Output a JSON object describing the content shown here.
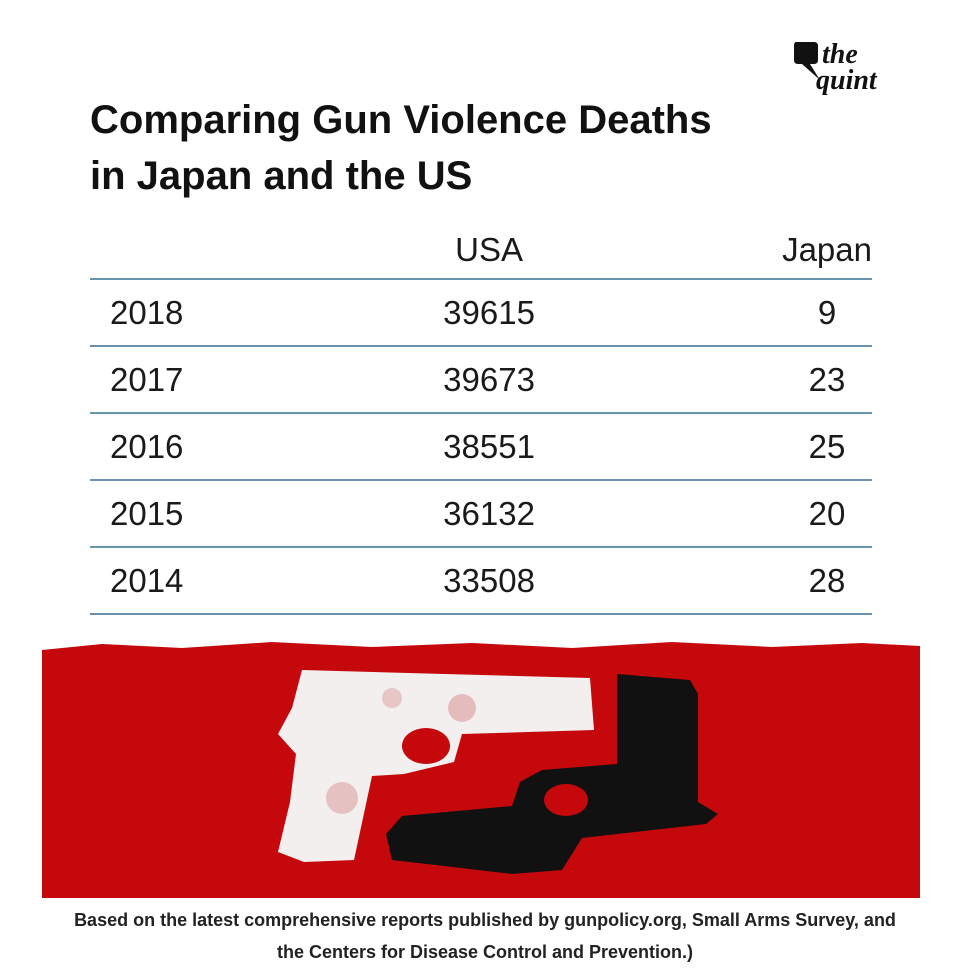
{
  "brand": {
    "line1": "the",
    "line2": "quint"
  },
  "chart_data": {
    "type": "table",
    "title": [
      "Comparing Gun Violence Deaths",
      "in Japan and the US"
    ],
    "columns": [
      "",
      "USA",
      "Japan"
    ],
    "rows": [
      {
        "year": "2018",
        "usa": "39615",
        "japan": "9"
      },
      {
        "year": "2017",
        "usa": "39673",
        "japan": "23"
      },
      {
        "year": "2016",
        "usa": "38551",
        "japan": "25"
      },
      {
        "year": "2015",
        "usa": "36132",
        "japan": "20"
      },
      {
        "year": "2014",
        "usa": "33508",
        "japan": "28"
      }
    ],
    "rule_color": "#6a93ad",
    "banner_color": "#c4080c"
  },
  "footnote": [
    "Based on the latest comprehensive reports published by gunpolicy.org,  Small Arms Survey, and",
    "the Centers for Disease Control and Prevention.)"
  ]
}
